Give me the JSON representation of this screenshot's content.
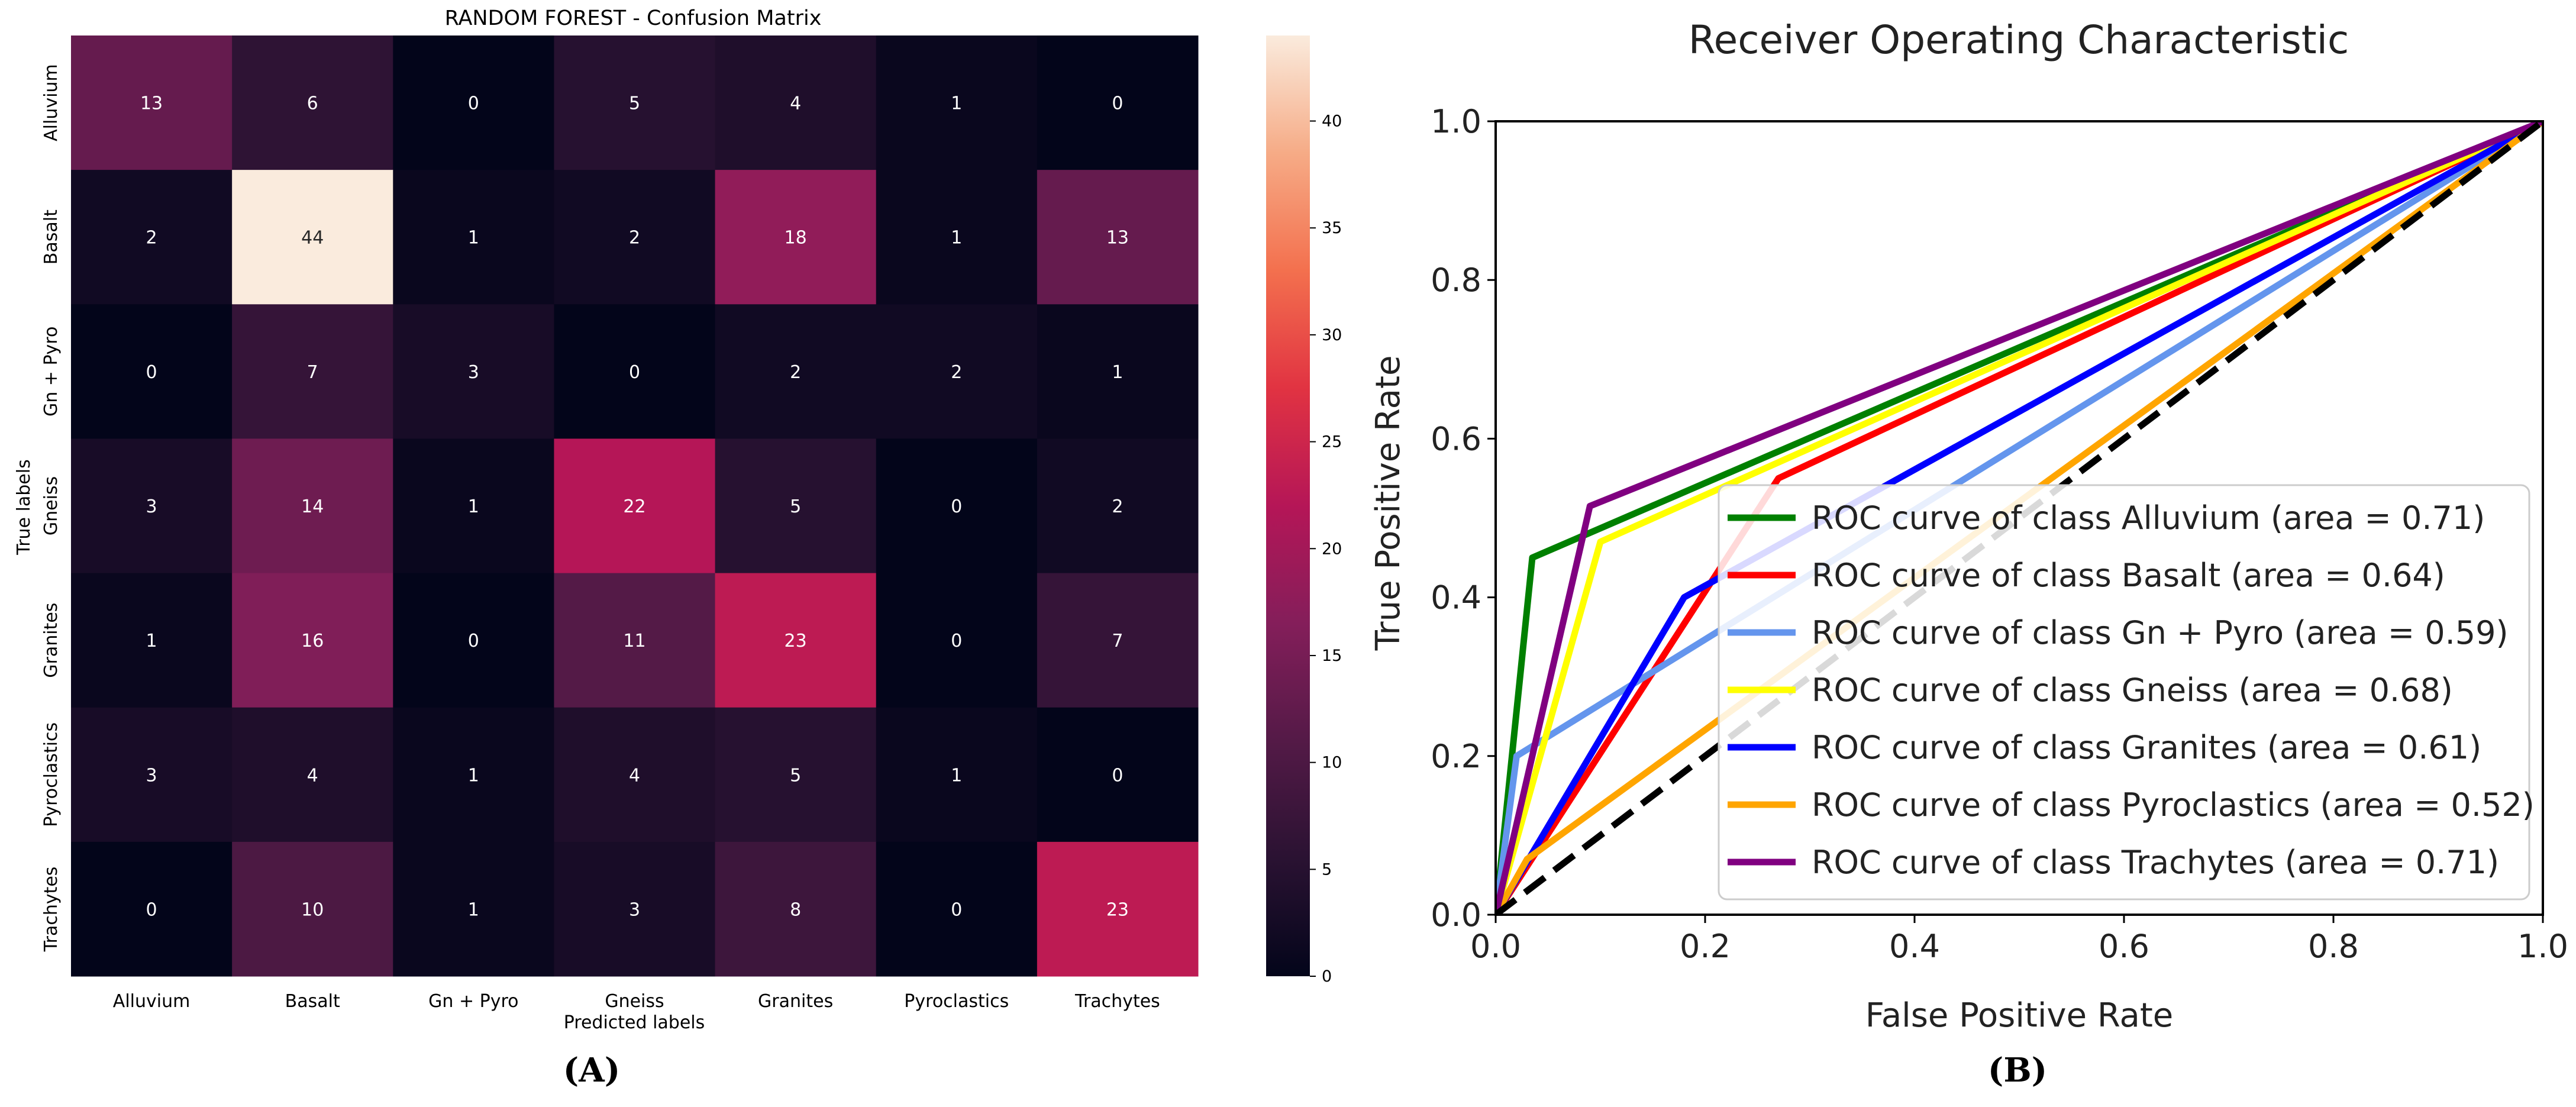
{
  "panel_labels": [
    "(A)",
    "(B)"
  ],
  "chart_data": [
    {
      "type": "heatmap",
      "title": "RANDOM FOREST - Confusion Matrix",
      "xlabel": "Predicted labels",
      "ylabel": "True labels",
      "x_categories": [
        "Alluvium",
        "Basalt",
        "Gn + Pyro",
        "Gneiss",
        "Granites",
        "Pyroclastics",
        "Trachytes"
      ],
      "y_categories": [
        "Alluvium",
        "Basalt",
        "Gn + Pyro",
        "Gneiss",
        "Granites",
        "Pyroclastics",
        "Trachytes"
      ],
      "matrix": [
        [
          13,
          6,
          0,
          5,
          4,
          1,
          0
        ],
        [
          2,
          44,
          1,
          2,
          18,
          1,
          13
        ],
        [
          0,
          7,
          3,
          0,
          2,
          2,
          1
        ],
        [
          3,
          14,
          1,
          22,
          5,
          0,
          2
        ],
        [
          1,
          16,
          0,
          11,
          23,
          0,
          7
        ],
        [
          3,
          4,
          1,
          4,
          5,
          1,
          0
        ],
        [
          0,
          10,
          1,
          3,
          8,
          0,
          23
        ]
      ],
      "colorbar": {
        "min": 0,
        "max": 44,
        "ticks": [
          0,
          5,
          10,
          15,
          20,
          25,
          30,
          35,
          40
        ],
        "colormap": "rocket"
      }
    },
    {
      "type": "line",
      "title": "Receiver Operating Characteristic",
      "xlabel": "False Positive Rate",
      "ylabel": "True Positive Rate",
      "xlim": [
        0.0,
        1.0
      ],
      "ylim": [
        0.0,
        1.0
      ],
      "xticks": [
        "0.0",
        "0.2",
        "0.4",
        "0.6",
        "0.8",
        "1.0"
      ],
      "yticks": [
        "0.0",
        "0.2",
        "0.4",
        "0.6",
        "0.8",
        "1.0"
      ],
      "legend_position": "lower-right",
      "series": [
        {
          "name": "ROC curve of class Alluvium (area = 0.71)",
          "color": "#008000",
          "points": [
            [
              0,
              0
            ],
            [
              0.035,
              0.45
            ],
            [
              1,
              1
            ]
          ]
        },
        {
          "name": "ROC curve of class Basalt (area = 0.64)",
          "color": "#ff0000",
          "points": [
            [
              0,
              0
            ],
            [
              0.27,
              0.55
            ],
            [
              1,
              1
            ]
          ]
        },
        {
          "name": "ROC curve of class Gn + Pyro (area = 0.59)",
          "color": "#6495ed",
          "points": [
            [
              0,
              0
            ],
            [
              0.02,
              0.2
            ],
            [
              1,
              1
            ]
          ]
        },
        {
          "name": "ROC curve of class Gneiss (area = 0.68)",
          "color": "#ffff00",
          "points": [
            [
              0,
              0
            ],
            [
              0.1,
              0.47
            ],
            [
              1,
              1
            ]
          ]
        },
        {
          "name": "ROC curve of class Granites (area = 0.61)",
          "color": "#0000ff",
          "points": [
            [
              0,
              0
            ],
            [
              0.18,
              0.4
            ],
            [
              1,
              1
            ]
          ]
        },
        {
          "name": "ROC curve of class Pyroclastics (area = 0.52)",
          "color": "#ffa500",
          "points": [
            [
              0,
              0
            ],
            [
              0.03,
              0.07
            ],
            [
              1,
              1
            ]
          ]
        },
        {
          "name": "ROC curve of class Trachytes (area = 0.71)",
          "color": "#800080",
          "points": [
            [
              0,
              0
            ],
            [
              0.09,
              0.515
            ],
            [
              1,
              1
            ]
          ]
        }
      ],
      "reference_line": {
        "points": [
          [
            0,
            0
          ],
          [
            1,
            1
          ]
        ],
        "color": "#000000",
        "style": "dashed"
      }
    }
  ]
}
